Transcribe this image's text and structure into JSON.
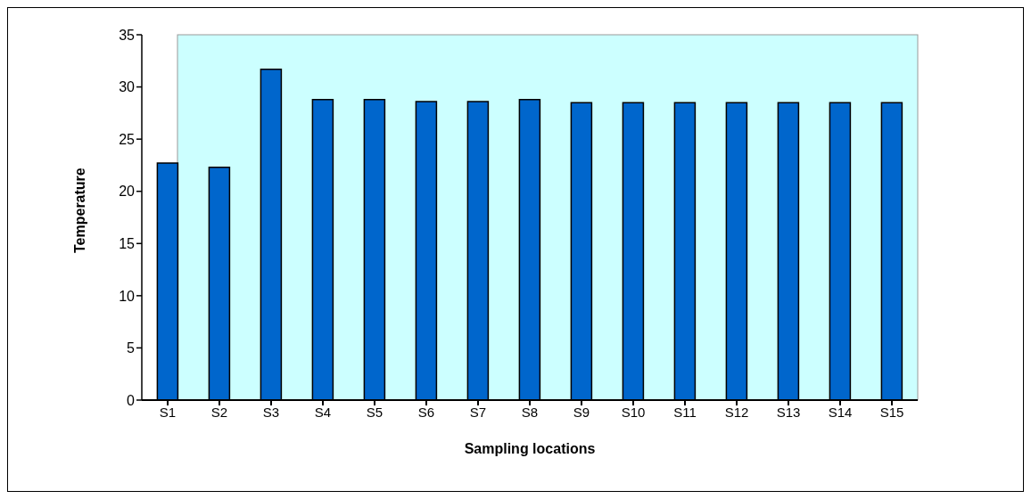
{
  "chart_data": {
    "type": "bar",
    "xlabel": "Sampling locations",
    "ylabel": "Temperature",
    "categories": [
      "S1",
      "S2",
      "S3",
      "S4",
      "S5",
      "S6",
      "S7",
      "S8",
      "S9",
      "S10",
      "S11",
      "S12",
      "S13",
      "S14",
      "S15"
    ],
    "values": [
      22.7,
      22.3,
      31.7,
      28.8,
      28.8,
      28.6,
      28.6,
      28.8,
      28.5,
      28.5,
      28.5,
      28.5,
      28.5,
      28.5,
      28.5
    ],
    "color": "#0066cc",
    "ylim": [
      0,
      35
    ],
    "yticks": [
      0,
      5,
      10,
      15,
      20,
      25,
      30,
      35
    ],
    "grid": false,
    "legend": false
  }
}
